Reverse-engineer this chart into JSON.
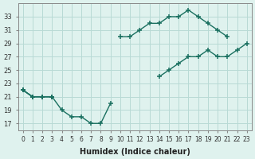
{
  "xlabel": "Humidex (Indice chaleur)",
  "bg_color": "#dff2ee",
  "grid_color": "#b8dad5",
  "line_color": "#1a7060",
  "hours": [
    0,
    1,
    2,
    3,
    4,
    5,
    6,
    7,
    8,
    9,
    10,
    11,
    12,
    13,
    14,
    15,
    16,
    17,
    18,
    19,
    20,
    21,
    22,
    23
  ],
  "line_dip": [
    22,
    21,
    21,
    21,
    19,
    18,
    18,
    17,
    17,
    20,
    null,
    null,
    null,
    null,
    null,
    null,
    null,
    null,
    null,
    null,
    null,
    null,
    null,
    null
  ],
  "line_top": [
    22,
    21,
    21,
    21,
    null,
    null,
    null,
    null,
    null,
    null,
    30,
    30,
    31,
    32,
    32,
    33,
    33,
    34,
    33,
    32,
    31,
    30,
    null,
    null
  ],
  "line_bot": [
    22,
    21,
    21,
    21,
    null,
    null,
    null,
    null,
    null,
    null,
    null,
    null,
    null,
    null,
    24,
    25,
    26,
    27,
    27,
    28,
    27,
    27,
    28,
    29
  ],
  "xlim": [
    -0.5,
    23.5
  ],
  "ylim": [
    16,
    35
  ],
  "yticks": [
    17,
    19,
    21,
    23,
    25,
    27,
    29,
    31,
    33
  ],
  "xticks": [
    0,
    1,
    2,
    3,
    4,
    5,
    6,
    7,
    8,
    9,
    10,
    11,
    12,
    13,
    14,
    15,
    16,
    17,
    18,
    19,
    20,
    21,
    22,
    23
  ],
  "marker_size": 4,
  "lw": 1.0
}
